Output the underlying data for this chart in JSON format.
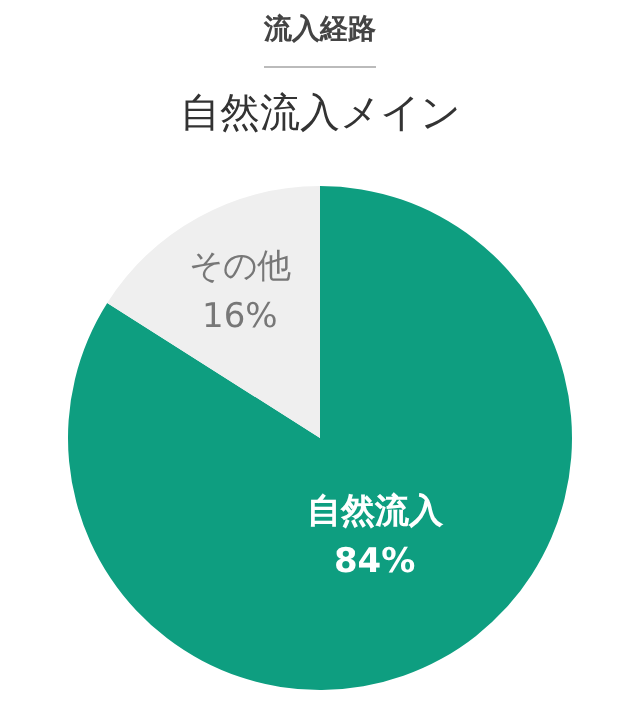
{
  "chart_data": {
    "type": "pie",
    "title": "流入経路",
    "subtitle": "自然流入メイン",
    "categories": [
      "自然流入",
      "その他"
    ],
    "values": [
      84,
      16
    ],
    "colors": [
      "#0e9e80",
      "#efefef"
    ],
    "value_labels": [
      "84%",
      "16%"
    ],
    "legend": false
  }
}
